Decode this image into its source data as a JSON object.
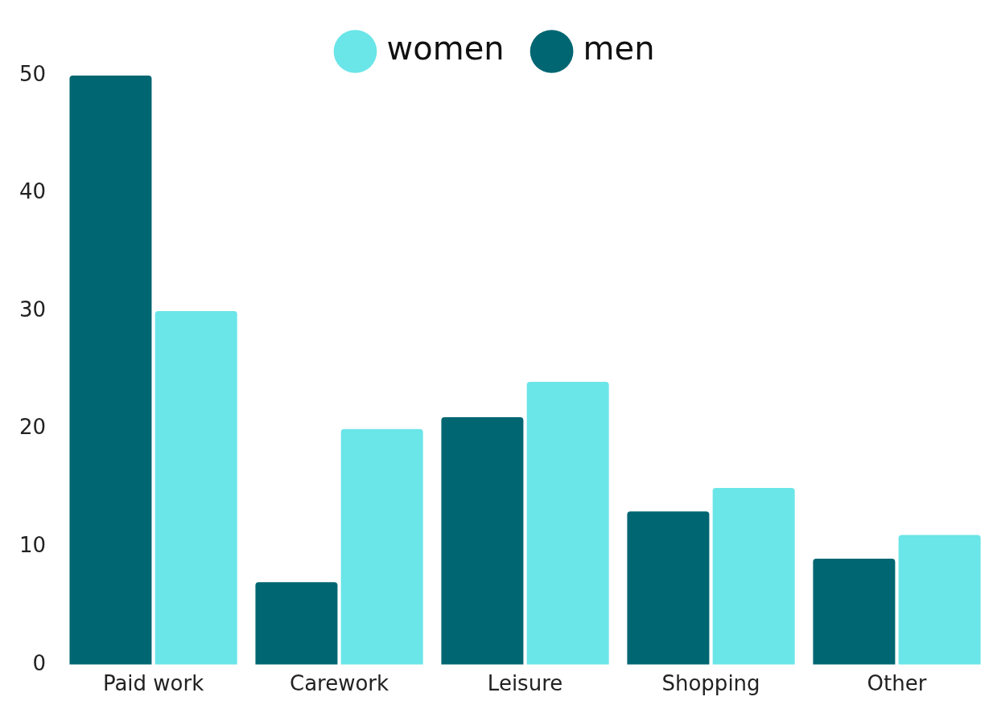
{
  "chart_data": {
    "type": "bar",
    "categories": [
      "Paid work",
      "Carework",
      "Leisure",
      "Shopping",
      "Other"
    ],
    "series": [
      {
        "name": "men",
        "color": "#006672",
        "values": [
          50,
          7,
          21,
          13,
          9
        ]
      },
      {
        "name": "women",
        "color": "#6ae5e8",
        "values": [
          30,
          20,
          24,
          15,
          11
        ]
      }
    ],
    "ylim": [
      0,
      50
    ],
    "yticks": [
      0,
      10,
      20,
      30,
      40,
      50
    ],
    "grid": false,
    "legend": "top"
  }
}
